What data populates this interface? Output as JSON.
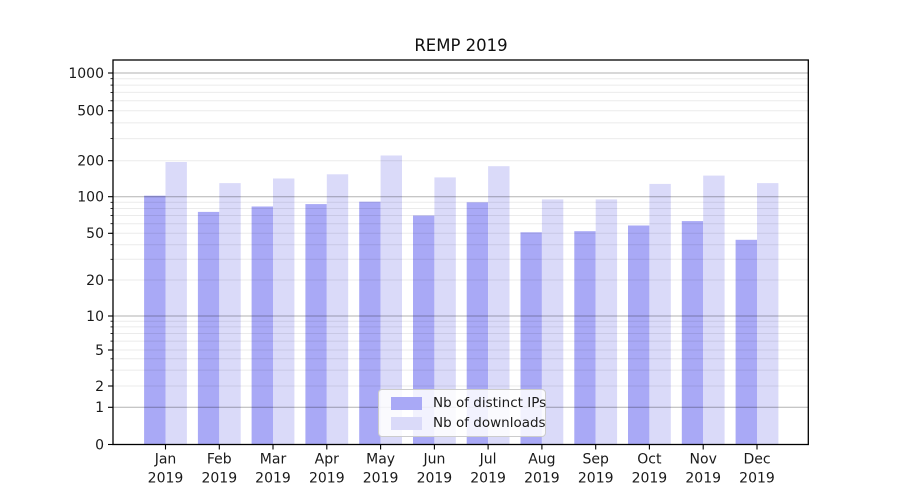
{
  "chart_data": {
    "type": "bar",
    "title": "REMP 2019",
    "categories": [
      {
        "month": "Jan",
        "year": "2019"
      },
      {
        "month": "Feb",
        "year": "2019"
      },
      {
        "month": "Mar",
        "year": "2019"
      },
      {
        "month": "Apr",
        "year": "2019"
      },
      {
        "month": "May",
        "year": "2019"
      },
      {
        "month": "Jun",
        "year": "2019"
      },
      {
        "month": "Jul",
        "year": "2019"
      },
      {
        "month": "Aug",
        "year": "2019"
      },
      {
        "month": "Sep",
        "year": "2019"
      },
      {
        "month": "Oct",
        "year": "2019"
      },
      {
        "month": "Nov",
        "year": "2019"
      },
      {
        "month": "Dec",
        "year": "2019"
      }
    ],
    "series": [
      {
        "name": "Nb of distinct IPs",
        "color": "#a9a9f6",
        "values": [
          102,
          75,
          83,
          87,
          91,
          70,
          90,
          51,
          52,
          58,
          63,
          44
        ]
      },
      {
        "name": "Nb of downloads",
        "color": "#dadaf9",
        "values": [
          195,
          130,
          142,
          154,
          220,
          145,
          180,
          95,
          95,
          128,
          150,
          130
        ]
      }
    ],
    "yscale": "symlog",
    "yticks": [
      0,
      1,
      2,
      5,
      10,
      20,
      50,
      100,
      200,
      500,
      1000
    ],
    "ylim": [
      0,
      1000
    ],
    "xlabel": "",
    "ylabel": "",
    "grid": true,
    "legend_position": "lower center",
    "colors": {
      "major_grid": "rgba(0,0,0,0.30)",
      "minor_grid": "rgba(0,0,0,0.08)",
      "axis_frame": "#000000",
      "tick_text": "#1a1a1a"
    }
  }
}
